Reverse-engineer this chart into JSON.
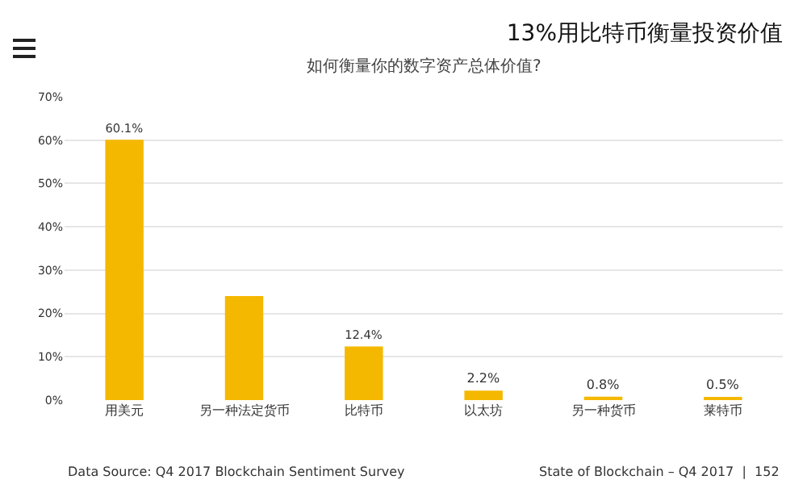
{
  "chart_data": {
    "type": "bar",
    "title": "13%用比特币衡量投资价值",
    "subtitle": "如何衡量你的数字资产总体价值?",
    "categories": [
      "用美元",
      "另一种法定货币",
      "比特币",
      "以太坊",
      "另一种货币",
      "莱特币"
    ],
    "values": [
      60.1,
      24,
      12.4,
      2.2,
      0.8,
      0.5
    ],
    "value_labels": [
      "60.1%",
      null,
      "12.4%",
      "2.2%",
      "0.8%",
      "0.5%"
    ],
    "color": "#f5b800",
    "ylim": [
      0,
      70
    ],
    "yticks": [
      {
        "value": 0,
        "label": "0%"
      },
      {
        "value": 10,
        "label": "10%"
      },
      {
        "value": 20,
        "label": "20%"
      },
      {
        "value": 30,
        "label": "30%"
      },
      {
        "value": 40,
        "label": "40%"
      },
      {
        "value": 50,
        "label": "50%"
      },
      {
        "value": 60,
        "label": "60%"
      },
      {
        "value": 70,
        "label": "70%"
      }
    ],
    "grid": "y",
    "annotations": [
      "Data Source: Q4 2017 Blockchain Sentiment Survey",
      "State of Blockchain – Q4 2017  |  152"
    ]
  }
}
